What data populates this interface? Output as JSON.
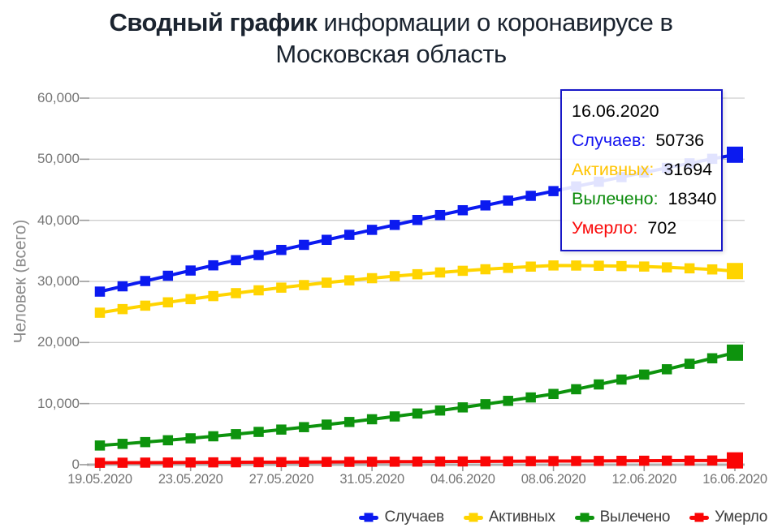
{
  "title": {
    "bold": "Сводный график",
    "regular": " информации о коронавирусе в",
    "line2": "Московская область"
  },
  "y_axis": {
    "title": "Человек (всего)",
    "tick_labels": [
      "0",
      "10,000",
      "20,000",
      "30,000",
      "40,000",
      "50,000",
      "60,000"
    ],
    "min": 0,
    "max": 60000,
    "interval": 10000
  },
  "x_axis": {
    "tick_labels": [
      "19.05.2020",
      "23.05.2020",
      "27.05.2020",
      "31.05.2020",
      "04.06.2020",
      "08.06.2020",
      "12.06.2020",
      "16.06.2020"
    ],
    "label_every_n_points": 4
  },
  "tooltip": {
    "date": "16.06.2020",
    "rows": [
      {
        "key": "cases",
        "label": "Случаев:",
        "value": "50736",
        "color": "#1414f0"
      },
      {
        "key": "active",
        "label": "Активных:",
        "value": "31694",
        "color": "#ffc400"
      },
      {
        "key": "recovered",
        "label": "Вылечено:",
        "value": "18340",
        "color": "#0a8a0a"
      },
      {
        "key": "deaths",
        "label": "Умерло:",
        "value": "702",
        "color": "#fa0a0a"
      }
    ],
    "border_color": "#1818c8"
  },
  "legend": [
    {
      "key": "cases",
      "label": "Случаев",
      "color": "#0b1af0"
    },
    {
      "key": "active",
      "label": "Активных",
      "color": "#ffd400"
    },
    {
      "key": "recovered",
      "label": "Вылечено",
      "color": "#0d930d"
    },
    {
      "key": "deaths",
      "label": "Умерло",
      "color": "#fa0505"
    }
  ],
  "colors": {
    "gridline": "#cecece",
    "axis_line": "#b0b0b0",
    "tick": "#9a9a9a",
    "axis_label": "#757575",
    "axis_title": "#8c8c8c",
    "legend_text": "#3e3e3e",
    "title_text": "#1b2430"
  },
  "chart_data": {
    "type": "line",
    "x": [
      "19.05.2020",
      "20.05.2020",
      "21.05.2020",
      "22.05.2020",
      "23.05.2020",
      "24.05.2020",
      "25.05.2020",
      "26.05.2020",
      "27.05.2020",
      "28.05.2020",
      "29.05.2020",
      "30.05.2020",
      "31.05.2020",
      "01.06.2020",
      "02.06.2020",
      "03.06.2020",
      "04.06.2020",
      "05.06.2020",
      "06.06.2020",
      "07.06.2020",
      "08.06.2020",
      "09.06.2020",
      "10.06.2020",
      "11.06.2020",
      "12.06.2020",
      "13.06.2020",
      "14.06.2020",
      "15.06.2020",
      "16.06.2020"
    ],
    "series": [
      {
        "key": "cases",
        "name": "Случаев",
        "color": "#0b1af0",
        "values": [
          28330,
          29200,
          30065,
          30925,
          31780,
          32630,
          33475,
          34315,
          35150,
          35980,
          36805,
          37625,
          38440,
          39250,
          40055,
          40855,
          41650,
          42440,
          43225,
          44005,
          44780,
          45550,
          46315,
          47075,
          47830,
          48580,
          49325,
          50065,
          50736
        ]
      },
      {
        "key": "active",
        "name": "Активных",
        "color": "#ffd400",
        "values": [
          24880,
          25466,
          26031,
          26575,
          27098,
          27600,
          28081,
          28541,
          28980,
          29398,
          29795,
          30171,
          30526,
          30860,
          31173,
          31465,
          31736,
          31986,
          32215,
          32423,
          32610,
          32596,
          32562,
          32508,
          32434,
          32300,
          32141,
          31962,
          31694
        ]
      },
      {
        "key": "recovered",
        "name": "Вылечено",
        "color": "#0d930d",
        "values": [
          3140,
          3410,
          3696,
          3998,
          4316,
          4650,
          5000,
          5366,
          5748,
          6146,
          6560,
          6990,
          7436,
          7898,
          8376,
          8870,
          9380,
          9906,
          10448,
          11006,
          11580,
          12350,
          13135,
          13935,
          14750,
          15620,
          16510,
          17415,
          18340
        ]
      },
      {
        "key": "deaths",
        "name": "Умерло",
        "color": "#fa0505",
        "values": [
          310,
          324,
          338,
          352,
          366,
          380,
          394,
          408,
          422,
          436,
          450,
          464,
          478,
          492,
          506,
          520,
          534,
          548,
          562,
          576,
          590,
          604,
          618,
          632,
          646,
          660,
          674,
          688,
          702
        ]
      }
    ],
    "title": "Сводный график информации о коронавирусе в Московская область",
    "xlabel": "",
    "ylabel": "Человек (всего)",
    "ylim": [
      0,
      60000
    ],
    "grid": true,
    "legend_position": "bottom",
    "marker": "square",
    "highlight_last_point": true
  }
}
